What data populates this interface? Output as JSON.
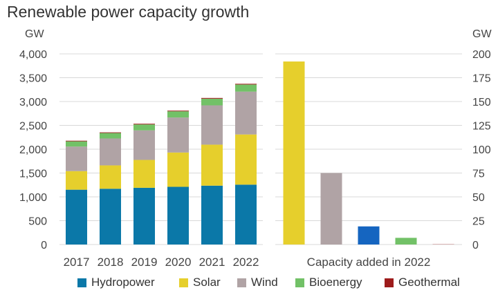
{
  "title": "Renewable power capacity growth",
  "colors": {
    "Hydropower": "#0b78a8",
    "Solar": "#e6cf2c",
    "Wind": "#b0a3a5",
    "Bioenergy": "#72c167",
    "Geothermal": "#9d1b1b",
    "added_hydropower": "#1565c0"
  },
  "chart_data": [
    {
      "type": "bar",
      "stacked": true,
      "categories": [
        "2017",
        "2018",
        "2019",
        "2020",
        "2021",
        "2022"
      ],
      "ylabel": "GW",
      "ylim": [
        0,
        4000
      ],
      "yticks": [
        "0",
        "500",
        "1,000",
        "1,500",
        "2,000",
        "2,500",
        "3,000",
        "3,500",
        "4,000"
      ],
      "grid": true,
      "series": [
        {
          "name": "Hydropower",
          "values": [
            1150,
            1170,
            1190,
            1210,
            1235,
            1256
          ]
        },
        {
          "name": "Solar",
          "values": [
            390,
            490,
            585,
            720,
            860,
            1053
          ]
        },
        {
          "name": "Wind",
          "values": [
            515,
            565,
            620,
            735,
            825,
            899
          ]
        },
        {
          "name": "Bioenergy",
          "values": [
            110,
            115,
            125,
            130,
            140,
            149
          ]
        },
        {
          "name": "Geothermal",
          "values": [
            13,
            13,
            14,
            14,
            15,
            15
          ]
        }
      ]
    },
    {
      "type": "bar",
      "xlabel": "Capacity added in 2022",
      "ylabel": "GW",
      "ylim": [
        0,
        200
      ],
      "yticks": [
        "0",
        "25",
        "50",
        "75",
        "100",
        "125",
        "150",
        "175",
        "200"
      ],
      "grid": true,
      "categories": [
        "Solar",
        "Wind",
        "Hydropower",
        "Bioenergy",
        "Geothermal"
      ],
      "values": [
        192,
        75,
        19,
        7,
        0.2
      ]
    }
  ],
  "legend": [
    {
      "label": "Hydropower",
      "color": "#0b78a8"
    },
    {
      "label": "Solar",
      "color": "#e6cf2c"
    },
    {
      "label": "Wind",
      "color": "#b0a3a5"
    },
    {
      "label": "Bioenergy",
      "color": "#72c167"
    },
    {
      "label": "Geothermal",
      "color": "#9d1b1b"
    }
  ]
}
